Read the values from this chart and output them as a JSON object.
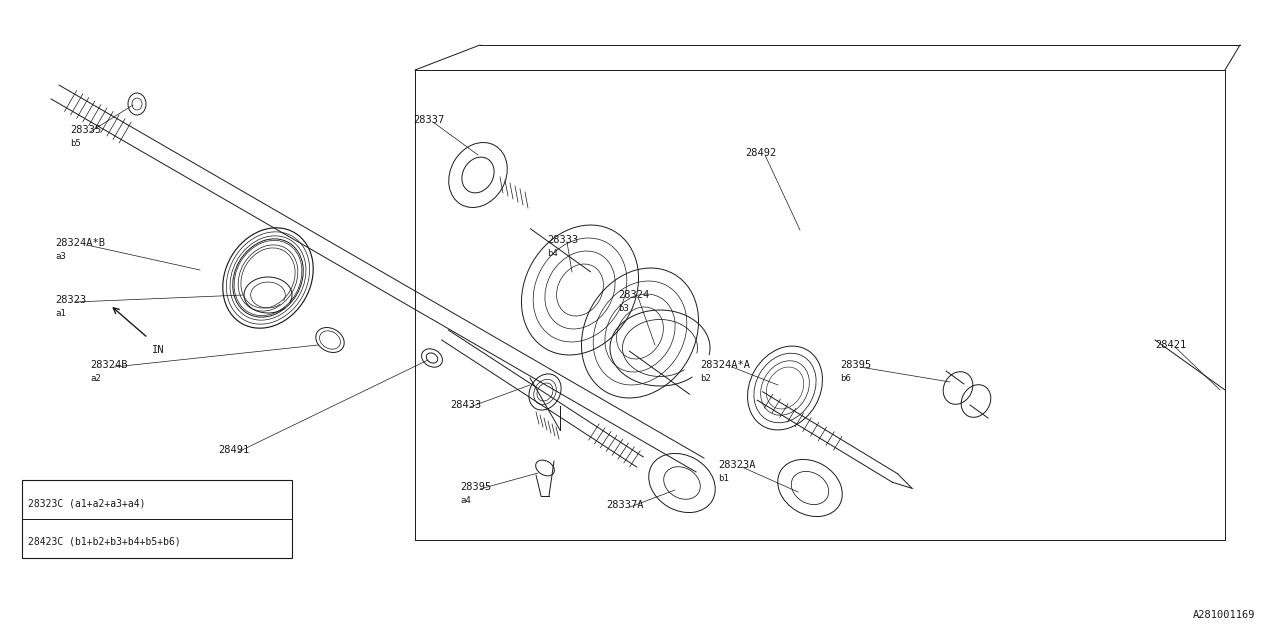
{
  "bg_color": "#ffffff",
  "line_color": "#1a1a1a",
  "fig_width": 12.8,
  "fig_height": 6.4,
  "diagram_id": "A281001169",
  "legend_rows": [
    "28323C (a1+a2+a3+a4)",
    "28423C (b1+b2+b3+b4+b5+b6)"
  ],
  "lw": 0.7,
  "font_size": 7.5
}
